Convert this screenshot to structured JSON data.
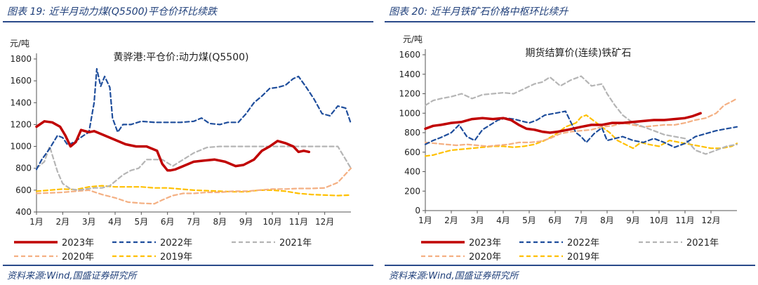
{
  "left": {
    "figure_title": "图表 19:  近半月动力煤(Q5500)平仓价环比续跌",
    "source": "资料来源:Wind,国盛证券研究所"
  },
  "right": {
    "figure_title": "图表 20:  近半月铁矿石价格中枢环比续升",
    "source": "资料来源:Wind,国盛证券研究所"
  },
  "chart_data": [
    {
      "type": "line",
      "title": "黄骅港:平仓价:动力煤(Q5500)",
      "ylabel": "元/吨",
      "ylim": [
        400,
        1800
      ],
      "yticks": [
        400,
        600,
        800,
        1000,
        1200,
        1400,
        1600,
        1800
      ],
      "x_labels": [
        "1月",
        "2月",
        "3月",
        "4月",
        "5月",
        "6月",
        "7月",
        "8月",
        "9月",
        "10月",
        "11月",
        "12月"
      ],
      "legend_position": "bottom",
      "series": [
        {
          "name": "2023年",
          "color": "#c00000",
          "dash": "solid",
          "width": 3.5,
          "x": [
            1,
            1.3,
            1.6,
            1.9,
            2.1,
            2.3,
            2.5,
            2.7,
            3,
            3.2,
            3.6,
            4,
            4.4,
            4.8,
            5.2,
            5.6,
            5.8,
            6,
            6.1,
            6.3,
            6.6,
            7,
            7.4,
            7.8,
            8.2,
            8.6,
            8.9,
            9.3,
            9.6,
            9.9,
            10.2,
            10.5,
            10.8,
            11,
            11.2,
            11.4
          ],
          "y": [
            1180,
            1230,
            1220,
            1180,
            1100,
            1000,
            1040,
            1150,
            1130,
            1140,
            1100,
            1060,
            1020,
            1000,
            1000,
            960,
            840,
            780,
            780,
            790,
            820,
            860,
            870,
            880,
            860,
            820,
            830,
            880,
            960,
            1000,
            1050,
            1030,
            1000,
            950,
            960,
            950
          ]
        },
        {
          "name": "2022年",
          "color": "#1f4e9c",
          "dash": "dashed",
          "width": 2.2,
          "x": [
            1,
            1.2,
            1.5,
            1.8,
            2,
            2.2,
            2.5,
            2.8,
            3,
            3.2,
            3.3,
            3.45,
            3.6,
            3.8,
            3.9,
            4.1,
            4.3,
            4.6,
            5,
            5.5,
            6,
            6.5,
            7,
            7.3,
            7.6,
            8,
            8.3,
            8.7,
            9,
            9.3,
            9.6,
            9.9,
            10.2,
            10.5,
            10.8,
            11,
            11.3,
            11.6,
            11.9,
            12.2,
            12.5,
            12.8,
            13
          ],
          "y": [
            790,
            880,
            980,
            1100,
            1080,
            1010,
            1050,
            1100,
            1130,
            1400,
            1710,
            1550,
            1640,
            1540,
            1260,
            1130,
            1200,
            1200,
            1230,
            1220,
            1220,
            1220,
            1230,
            1260,
            1210,
            1200,
            1220,
            1220,
            1300,
            1400,
            1460,
            1530,
            1540,
            1560,
            1620,
            1640,
            1540,
            1430,
            1300,
            1280,
            1370,
            1350,
            1210
          ]
        },
        {
          "name": "2021年",
          "color": "#b5b5b5",
          "dash": "dashed",
          "width": 2.2,
          "x": [
            1,
            1.3,
            1.5,
            1.8,
            2,
            2.3,
            2.6,
            2.9,
            3.2,
            3.5,
            3.8,
            4,
            4.3,
            4.6,
            4.9,
            5.2,
            5.5,
            5.8,
            6.2,
            6.6,
            7,
            7.5,
            8,
            8.5,
            9,
            10,
            11,
            12,
            12.5,
            13
          ],
          "y": [
            800,
            860,
            1000,
            770,
            660,
            610,
            600,
            610,
            620,
            620,
            640,
            680,
            740,
            780,
            800,
            880,
            880,
            880,
            820,
            880,
            940,
            990,
            1000,
            1000,
            1000,
            1000,
            1000,
            1000,
            1000,
            800
          ]
        },
        {
          "name": "2020年",
          "color": "#f4b083",
          "dash": "dashed",
          "width": 2.2,
          "x": [
            1,
            1.5,
            2,
            2.5,
            3,
            3.5,
            4,
            4.5,
            5,
            5.5,
            5.8,
            6.2,
            6.6,
            7,
            7.5,
            8,
            8.5,
            9,
            9.5,
            10,
            10.5,
            11,
            11.5,
            12,
            12.5,
            13
          ],
          "y": [
            570,
            575,
            580,
            590,
            600,
            560,
            530,
            490,
            480,
            475,
            510,
            550,
            570,
            570,
            580,
            580,
            590,
            590,
            600,
            610,
            610,
            615,
            615,
            620,
            670,
            800
          ]
        },
        {
          "name": "2019年",
          "color": "#ffc000",
          "dash": "dashed",
          "width": 2.2,
          "x": [
            1,
            1.5,
            2,
            2.5,
            3,
            3.5,
            4,
            4.5,
            5,
            5.5,
            6,
            6.5,
            7,
            7.5,
            8,
            8.5,
            9,
            9.5,
            10,
            10.5,
            11,
            11.5,
            12,
            12.5,
            13
          ],
          "y": [
            590,
            600,
            610,
            605,
            630,
            640,
            630,
            630,
            630,
            620,
            620,
            610,
            600,
            595,
            590,
            585,
            585,
            600,
            600,
            590,
            570,
            560,
            555,
            550,
            555
          ]
        }
      ]
    },
    {
      "type": "line",
      "title": "期货结算价(连续)铁矿石",
      "ylabel": "元/吨",
      "ylim": [
        0,
        1600
      ],
      "yticks": [
        0,
        200,
        400,
        600,
        800,
        1000,
        1200,
        1400,
        1600
      ],
      "x_labels": [
        "1月",
        "2月",
        "3月",
        "4月",
        "5月",
        "6月",
        "7月",
        "8月",
        "9月",
        "10月",
        "11月",
        "12月"
      ],
      "legend_position": "bottom",
      "series": [
        {
          "name": "2023年",
          "color": "#c00000",
          "dash": "solid",
          "width": 3.5,
          "x": [
            1,
            1.3,
            1.6,
            2,
            2.4,
            2.8,
            3.2,
            3.6,
            4,
            4.3,
            4.6,
            4.9,
            5.2,
            5.5,
            5.8,
            6.1,
            6.5,
            7,
            7.4,
            7.8,
            8.2,
            8.6,
            9,
            9.4,
            9.8,
            10.2,
            10.6,
            11,
            11.3,
            11.6
          ],
          "y": [
            840,
            870,
            880,
            900,
            910,
            940,
            950,
            940,
            950,
            930,
            880,
            840,
            830,
            810,
            800,
            810,
            830,
            860,
            880,
            880,
            900,
            900,
            910,
            920,
            930,
            930,
            940,
            950,
            970,
            1000
          ]
        },
        {
          "name": "2022年",
          "color": "#1f4e9c",
          "dash": "dashed",
          "width": 2.2,
          "x": [
            1,
            1.3,
            1.6,
            2,
            2.3,
            2.6,
            2.9,
            3.2,
            3.5,
            3.8,
            4.1,
            4.4,
            4.7,
            5,
            5.3,
            5.6,
            6,
            6.4,
            6.8,
            7,
            7.2,
            7.5,
            7.8,
            8,
            8.3,
            8.6,
            9,
            9.4,
            9.8,
            10.2,
            10.6,
            11,
            11.4,
            11.8,
            12.2,
            12.6,
            13
          ],
          "y": [
            680,
            720,
            750,
            800,
            880,
            760,
            720,
            830,
            880,
            930,
            950,
            940,
            920,
            900,
            930,
            980,
            1000,
            1020,
            800,
            760,
            700,
            790,
            850,
            720,
            740,
            760,
            720,
            700,
            740,
            700,
            650,
            690,
            760,
            790,
            820,
            840,
            860
          ]
        },
        {
          "name": "2021年",
          "color": "#b5b5b5",
          "dash": "dashed",
          "width": 2.2,
          "x": [
            1,
            1.3,
            1.6,
            2,
            2.4,
            2.8,
            3.2,
            3.6,
            4,
            4.4,
            4.8,
            5.2,
            5.5,
            5.8,
            6.2,
            6.6,
            7,
            7.4,
            7.8,
            8,
            8.3,
            8.6,
            9,
            9.4,
            9.8,
            10.2,
            10.6,
            11,
            11.4,
            11.8,
            12.2,
            12.6,
            13
          ],
          "y": [
            1080,
            1130,
            1150,
            1170,
            1200,
            1150,
            1190,
            1200,
            1210,
            1200,
            1250,
            1300,
            1320,
            1370,
            1280,
            1340,
            1380,
            1280,
            1300,
            1200,
            1080,
            980,
            900,
            860,
            820,
            780,
            760,
            740,
            620,
            580,
            620,
            660,
            680
          ]
        },
        {
          "name": "2020年",
          "color": "#f4b083",
          "dash": "dashed",
          "width": 2.2,
          "x": [
            1,
            1.4,
            1.8,
            2.2,
            2.6,
            3,
            3.4,
            3.8,
            4.2,
            4.6,
            5,
            5.4,
            5.8,
            6.2,
            6.6,
            7,
            7.4,
            7.8,
            8.2,
            8.6,
            9,
            9.4,
            9.8,
            10.2,
            10.6,
            11,
            11.4,
            11.8,
            12.2,
            12.5,
            12.8,
            13
          ],
          "y": [
            700,
            690,
            680,
            670,
            680,
            670,
            660,
            670,
            680,
            700,
            700,
            710,
            740,
            790,
            810,
            820,
            830,
            860,
            870,
            900,
            880,
            860,
            870,
            880,
            880,
            900,
            930,
            950,
            1000,
            1080,
            1120,
            1150
          ]
        },
        {
          "name": "2019年",
          "color": "#ffc000",
          "dash": "dashed",
          "width": 2.2,
          "x": [
            1,
            1.3,
            1.7,
            2,
            2.4,
            2.8,
            3.2,
            3.6,
            4,
            4.4,
            4.8,
            5.2,
            5.6,
            6,
            6.4,
            6.8,
            7,
            7.2,
            7.5,
            7.8,
            8.1,
            8.4,
            8.7,
            9,
            9.3,
            9.6,
            10,
            10.4,
            10.8,
            11.2,
            11.6,
            12,
            12.4,
            12.8,
            13
          ],
          "y": [
            560,
            570,
            600,
            620,
            630,
            640,
            650,
            660,
            660,
            650,
            660,
            680,
            720,
            780,
            860,
            900,
            960,
            980,
            920,
            860,
            800,
            720,
            680,
            640,
            700,
            680,
            660,
            720,
            700,
            680,
            660,
            640,
            640,
            660,
            690
          ]
        }
      ]
    }
  ]
}
